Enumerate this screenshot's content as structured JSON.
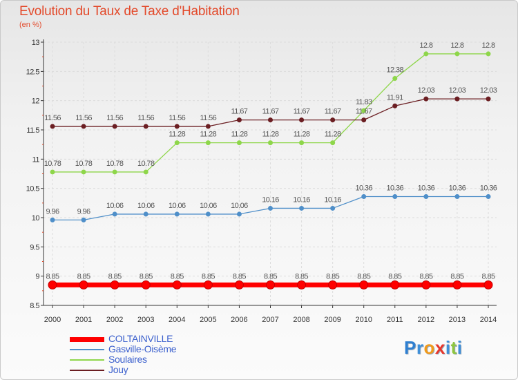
{
  "title": "Evolution du Taux de Taxe d'Habitation",
  "subtitle": "(en %)",
  "logo": {
    "letters": [
      {
        "ch": "P",
        "color": "#2e7fd1"
      },
      {
        "ch": "r",
        "color": "#3f8fd8"
      },
      {
        "ch": "o",
        "color": "#f09a1c"
      },
      {
        "ch": "x",
        "color": "#e8352a"
      },
      {
        "ch": "i",
        "color": "#3f8fd8"
      },
      {
        "ch": "t",
        "color": "#8ec63f"
      },
      {
        "ch": "i",
        "color": "#3f8fd8"
      }
    ]
  },
  "chart_data": {
    "type": "line",
    "title": "Evolution du Taux de Taxe d'Habitation",
    "ylabel": "(en %)",
    "xlabel": "",
    "x": [
      "2000",
      "2001",
      "2002",
      "2003",
      "2004",
      "2005",
      "2006",
      "2007",
      "2008",
      "2009",
      "2010",
      "2011",
      "2012",
      "2013",
      "2014"
    ],
    "ylim": [
      8.5,
      13
    ],
    "yticks": [
      8.5,
      9,
      9.5,
      10,
      10.5,
      11,
      11.5,
      12,
      12.5,
      13
    ],
    "ytick_labels": [
      "8.5",
      "9",
      "9.5",
      "10",
      "10.5",
      "11",
      "11.5",
      "12",
      "12.5",
      "13"
    ],
    "grid": true,
    "legend_position": "bottom-left",
    "series": [
      {
        "name": "COLTAINVILLE",
        "color": "#ff0000",
        "line_width": 7,
        "marker_size": 6,
        "values": [
          8.85,
          8.85,
          8.85,
          8.85,
          8.85,
          8.85,
          8.85,
          8.85,
          8.85,
          8.85,
          8.85,
          8.85,
          8.85,
          8.85,
          8.85
        ],
        "labels": [
          "8.85",
          "8.85",
          "8.85",
          "8.85",
          "8.85",
          "8.85",
          "8.85",
          "8.85",
          "8.85",
          "8.85",
          "8.85",
          "8.85",
          "8.85",
          "8.85",
          "8.85"
        ]
      },
      {
        "name": "Gasville-Oisème",
        "color": "#4f8fc9",
        "line_width": 1.3,
        "marker_size": 3.5,
        "values": [
          9.96,
          9.96,
          10.06,
          10.06,
          10.06,
          10.06,
          10.06,
          10.16,
          10.16,
          10.16,
          10.36,
          10.36,
          10.36,
          10.36,
          10.36
        ],
        "labels": [
          "9.96",
          "9.96",
          "10.06",
          "10.06",
          "10.06",
          "10.06",
          "10.06",
          "10.16",
          "10.16",
          "10.16",
          "10.36",
          "10.36",
          "10.36",
          "10.36",
          "10.36"
        ]
      },
      {
        "name": "Soulaires",
        "color": "#8ed64a",
        "line_width": 1.3,
        "marker_size": 3.5,
        "values": [
          10.78,
          10.78,
          10.78,
          10.78,
          11.28,
          11.28,
          11.28,
          11.28,
          11.28,
          11.28,
          11.83,
          12.38,
          12.8,
          12.8,
          12.8
        ],
        "labels": [
          "10.78",
          "10.78",
          "10.78",
          "10.78",
          "11.28",
          "11.28",
          "11.28",
          "11.28",
          "11.28",
          "11.28",
          "11.83",
          "12.38",
          "12.8",
          "12.8",
          "12.8"
        ]
      },
      {
        "name": "Jouy",
        "color": "#6b1e22",
        "line_width": 1.3,
        "marker_size": 3.5,
        "values": [
          11.56,
          11.56,
          11.56,
          11.56,
          11.56,
          11.56,
          11.67,
          11.67,
          11.67,
          11.67,
          11.67,
          11.91,
          12.03,
          12.03,
          12.03
        ],
        "labels": [
          "11.56",
          "11.56",
          "11.56",
          "11.56",
          "11.56",
          "11.56",
          "11.67",
          "11.67",
          "11.67",
          "11.67",
          "11.67",
          "11.91",
          "12.03",
          "12.03",
          "12.03"
        ]
      }
    ]
  }
}
